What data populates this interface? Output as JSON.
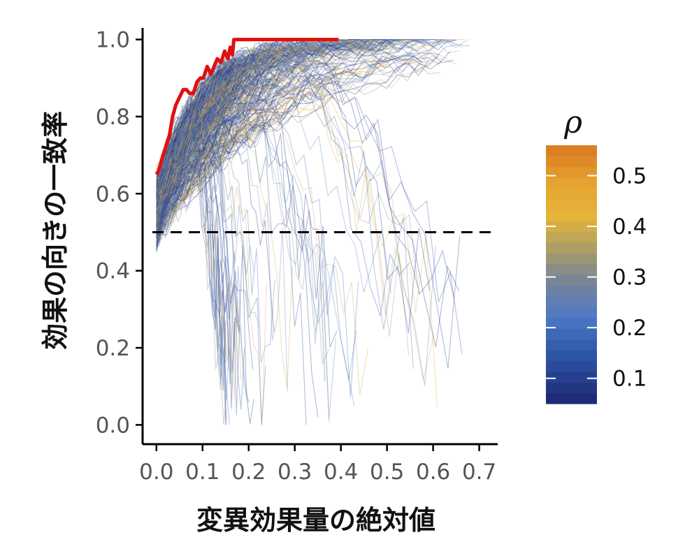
{
  "chart_data": {
    "type": "line",
    "xlabel": "変異効果量の絶対値",
    "ylabel": "効果の向きの一致率",
    "xlim": [
      -0.03,
      0.74
    ],
    "ylim": [
      -0.05,
      1.03
    ],
    "x_ticks": [
      0.0,
      0.1,
      0.2,
      0.3,
      0.4,
      0.5,
      0.6,
      0.7
    ],
    "x_tick_labels": [
      "0.0",
      "0.1",
      "0.2",
      "0.3",
      "0.4",
      "0.5",
      "0.6",
      "0.7"
    ],
    "y_ticks": [
      0.0,
      0.2,
      0.4,
      0.6,
      0.8,
      1.0
    ],
    "y_tick_labels": [
      "0.0",
      "0.2",
      "0.4",
      "0.6",
      "0.8",
      "1.0"
    ],
    "reference_line": {
      "y": 0.5,
      "style": "dashed",
      "color": "#000000"
    },
    "highlight_series": {
      "name": "highlighted",
      "color": "#e01010",
      "x": [
        0.0,
        0.005,
        0.012,
        0.02,
        0.028,
        0.035,
        0.042,
        0.05,
        0.058,
        0.065,
        0.072,
        0.08,
        0.088,
        0.095,
        0.102,
        0.11,
        0.118,
        0.125,
        0.132,
        0.14,
        0.148,
        0.155,
        0.16,
        0.165,
        0.168,
        0.2,
        0.3,
        0.395
      ],
      "y": [
        0.65,
        0.66,
        0.69,
        0.72,
        0.75,
        0.8,
        0.83,
        0.85,
        0.87,
        0.87,
        0.86,
        0.86,
        0.89,
        0.9,
        0.9,
        0.93,
        0.91,
        0.93,
        0.95,
        0.94,
        0.97,
        0.95,
        0.98,
        0.96,
        1.0,
        1.0,
        1.0,
        1.0
      ]
    },
    "background_series": {
      "description_count": 420,
      "y_start_range": [
        0.47,
        0.65
      ],
      "x_max_range": [
        0.15,
        0.68
      ]
    },
    "colorbar": {
      "title": "ρ",
      "range": [
        0.05,
        0.56
      ],
      "ticks": [
        0.1,
        0.2,
        0.3,
        0.4,
        0.5
      ],
      "tick_labels": [
        "0.1",
        "0.2",
        "0.3",
        "0.4",
        "0.5"
      ],
      "color_stops": [
        {
          "value": 0.05,
          "color": "#1c2772"
        },
        {
          "value": 0.15,
          "color": "#2f56a8"
        },
        {
          "value": 0.22,
          "color": "#4d78c6"
        },
        {
          "value": 0.3,
          "color": "#7c8691"
        },
        {
          "value": 0.35,
          "color": "#a69c6a"
        },
        {
          "value": 0.42,
          "color": "#e6b43a"
        },
        {
          "value": 0.48,
          "color": "#e5a532"
        },
        {
          "value": 0.56,
          "color": "#d97a20"
        }
      ]
    }
  }
}
